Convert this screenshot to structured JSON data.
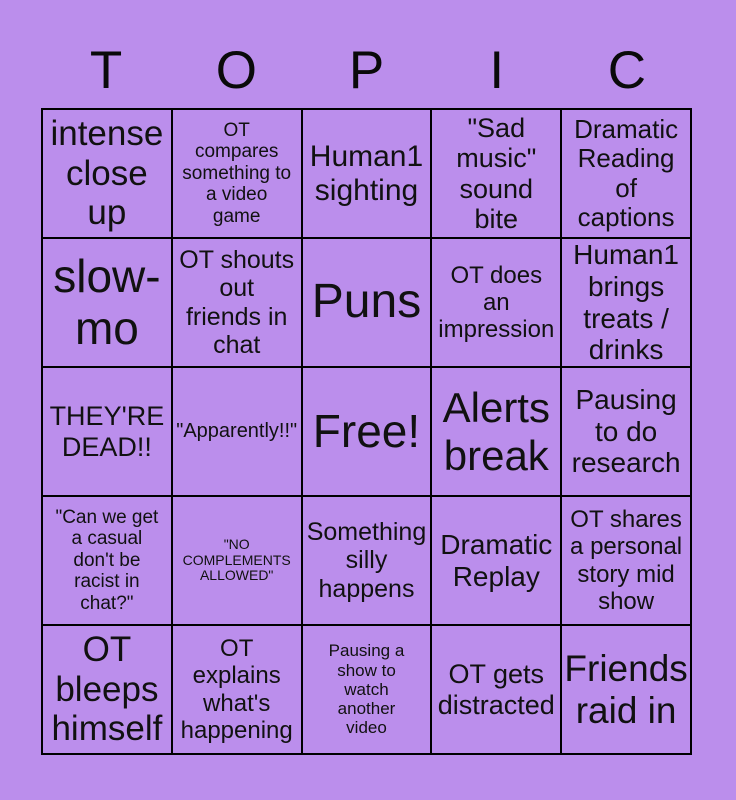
{
  "title": {
    "letters": [
      "T",
      "O",
      "P",
      "I",
      "C"
    ]
  },
  "grid": {
    "rows": [
      [
        "intense\nclose\nup",
        "OT\ncompares\nsomething to\na video\ngame",
        "Human1\nsighting",
        "\"Sad\nmusic\"\nsound bite",
        "Dramatic\nReading\nof\ncaptions"
      ],
      [
        "slow-\nmo",
        "OT shouts\nout\nfriends in\nchat",
        "Puns",
        "OT does\nan\nimpression",
        "Human1\nbrings\ntreats /\ndrinks"
      ],
      [
        "THEY'RE\nDEAD!!",
        "\"Apparently!!\"",
        "Free!",
        "Alerts\nbreak",
        "Pausing\nto do\nresearch"
      ],
      [
        "\"Can we get\na casual\ndon't be\nracist in\nchat?\"",
        "\"NO\nCOMPLEMENTS\nALLOWED\"",
        "Something\nsilly\nhappens",
        "Dramatic\nReplay",
        "OT shares\na personal\nstory mid\nshow"
      ],
      [
        "OT\nbleeps\nhimself",
        "OT\nexplains\nwhat's\nhappening",
        "Pausing a\nshow to\nwatch\nanother\nvideo",
        "OT gets\ndistracted",
        "Friends\nraid in"
      ]
    ]
  },
  "colors": {
    "background": "#BB8EEC",
    "grid_lines": "#000000",
    "text": "#111111"
  }
}
